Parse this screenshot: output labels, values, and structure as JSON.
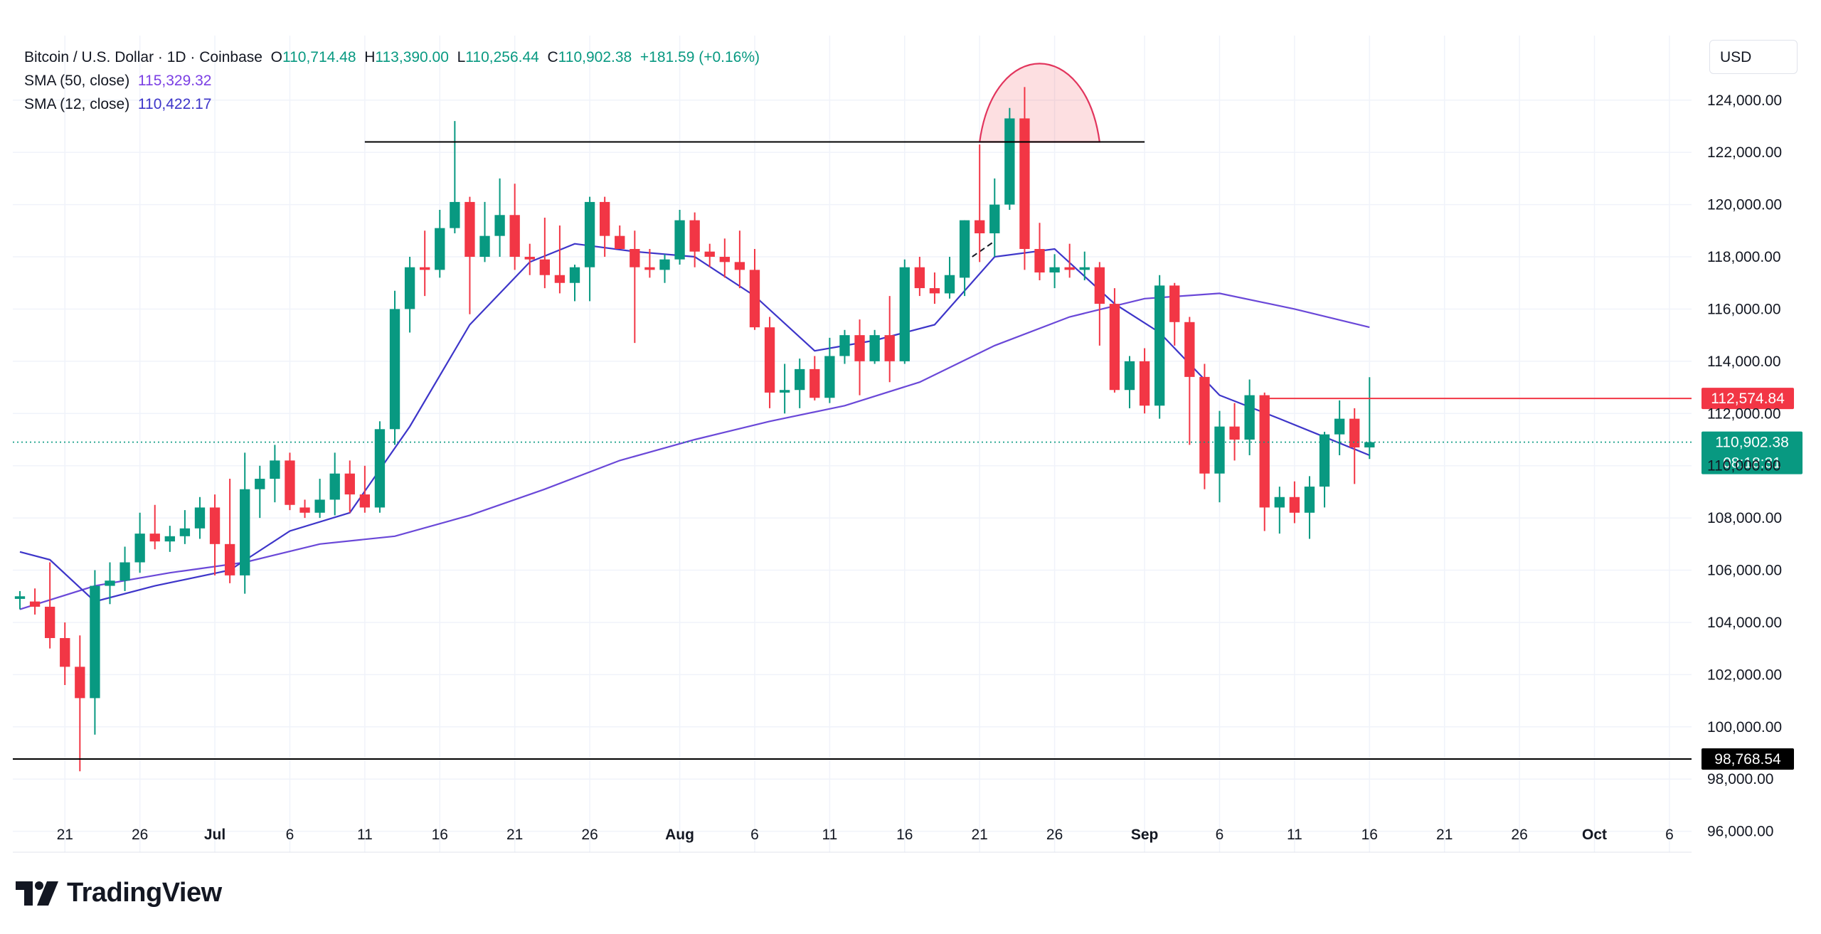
{
  "header": {
    "symbol": "Bitcoin / U.S. Dollar · 1D · Coinbase",
    "o_label": "O",
    "o_value": "110,714.48",
    "h_label": "H",
    "h_value": "113,390.00",
    "l_label": "L",
    "l_value": "110,256.44",
    "c_label": "C",
    "c_value": "110,902.38",
    "change": "+181.59 (+0.16%)",
    "sma50_label": "SMA (50, close)",
    "sma50_value": "115,329.32",
    "sma12_label": "SMA (12, close)",
    "sma12_value": "110,422.17"
  },
  "currency": "USD",
  "brand": "TradingView",
  "colors": {
    "up": "#089981",
    "down": "#f23645",
    "sma50": "#6a48d8",
    "sma12": "#3d35c9",
    "grid": "#f0f3fa",
    "axis_text": "#131722",
    "resistance": "#f23645",
    "support": "#000000"
  },
  "chart_data": {
    "type": "candlestick",
    "x_tick_labels": [
      "21",
      "26",
      "Jul",
      "6",
      "11",
      "16",
      "21",
      "26",
      "Aug",
      "6",
      "11",
      "16",
      "21",
      "26",
      "Sep",
      "6",
      "11",
      "16",
      "21",
      "26",
      "Oct",
      "6"
    ],
    "y_tick_labels": [
      "96,000.00",
      "98,000.00",
      "100,000.00",
      "102,000.00",
      "104,000.00",
      "106,000.00",
      "108,000.00",
      "110,000.00",
      "112,000.00",
      "114,000.00",
      "116,000.00",
      "118,000.00",
      "120,000.00",
      "122,000.00",
      "124,000.00"
    ],
    "ylim": [
      95200,
      126200
    ],
    "x_range": [
      "2025-06-18",
      "2025-10-07"
    ],
    "candles": [
      {
        "d": "2025-06-18",
        "o": 104900,
        "h": 105200,
        "l": 104500,
        "c": 105000
      },
      {
        "d": "2025-06-19",
        "o": 104800,
        "h": 105300,
        "l": 104300,
        "c": 104600
      },
      {
        "d": "2025-06-20",
        "o": 104600,
        "h": 106300,
        "l": 103000,
        "c": 103400
      },
      {
        "d": "2025-06-21",
        "o": 103400,
        "h": 104000,
        "l": 101600,
        "c": 102300
      },
      {
        "d": "2025-06-22",
        "o": 102300,
        "h": 103500,
        "l": 98300,
        "c": 101100
      },
      {
        "d": "2025-06-23",
        "o": 101100,
        "h": 106000,
        "l": 99700,
        "c": 105400
      },
      {
        "d": "2025-06-24",
        "o": 105400,
        "h": 106300,
        "l": 104700,
        "c": 105600
      },
      {
        "d": "2025-06-25",
        "o": 105600,
        "h": 106900,
        "l": 105200,
        "c": 106300
      },
      {
        "d": "2025-06-26",
        "o": 106300,
        "h": 108200,
        "l": 105900,
        "c": 107400
      },
      {
        "d": "2025-06-27",
        "o": 107400,
        "h": 108500,
        "l": 106800,
        "c": 107100
      },
      {
        "d": "2025-06-28",
        "o": 107100,
        "h": 107700,
        "l": 106700,
        "c": 107300
      },
      {
        "d": "2025-06-29",
        "o": 107300,
        "h": 108300,
        "l": 107000,
        "c": 107600
      },
      {
        "d": "2025-06-30",
        "o": 107600,
        "h": 108800,
        "l": 107200,
        "c": 108400
      },
      {
        "d": "2025-07-01",
        "o": 108400,
        "h": 108900,
        "l": 105800,
        "c": 107000
      },
      {
        "d": "2025-07-02",
        "o": 107000,
        "h": 109500,
        "l": 105500,
        "c": 105800
      },
      {
        "d": "2025-07-03",
        "o": 105800,
        "h": 110500,
        "l": 105100,
        "c": 109100
      },
      {
        "d": "2025-07-04",
        "o": 109100,
        "h": 110000,
        "l": 108000,
        "c": 109500
      },
      {
        "d": "2025-07-05",
        "o": 109500,
        "h": 110800,
        "l": 108600,
        "c": 110200
      },
      {
        "d": "2025-07-06",
        "o": 110200,
        "h": 110500,
        "l": 108300,
        "c": 108500
      },
      {
        "d": "2025-07-07",
        "o": 108400,
        "h": 108700,
        "l": 108000,
        "c": 108200
      },
      {
        "d": "2025-07-08",
        "o": 108200,
        "h": 109500,
        "l": 108000,
        "c": 108700
      },
      {
        "d": "2025-07-09",
        "o": 108700,
        "h": 110500,
        "l": 108100,
        "c": 109700
      },
      {
        "d": "2025-07-10",
        "o": 109700,
        "h": 110200,
        "l": 108200,
        "c": 108900
      },
      {
        "d": "2025-07-11",
        "o": 108900,
        "h": 110000,
        "l": 108200,
        "c": 108400
      },
      {
        "d": "2025-07-12",
        "o": 108400,
        "h": 111700,
        "l": 108200,
        "c": 111400
      },
      {
        "d": "2025-07-13",
        "o": 111400,
        "h": 116700,
        "l": 110800,
        "c": 116000
      },
      {
        "d": "2025-07-14",
        "o": 116000,
        "h": 118000,
        "l": 115100,
        "c": 117600
      },
      {
        "d": "2025-07-15",
        "o": 117600,
        "h": 119000,
        "l": 116500,
        "c": 117500
      },
      {
        "d": "2025-07-16",
        "o": 117500,
        "h": 119800,
        "l": 117200,
        "c": 119100
      },
      {
        "d": "2025-07-17",
        "o": 119100,
        "h": 123200,
        "l": 118900,
        "c": 120100
      },
      {
        "d": "2025-07-18",
        "o": 120100,
        "h": 120300,
        "l": 115800,
        "c": 118000
      },
      {
        "d": "2025-07-19",
        "o": 118000,
        "h": 120100,
        "l": 117800,
        "c": 118800
      },
      {
        "d": "2025-07-20",
        "o": 118800,
        "h": 121000,
        "l": 118000,
        "c": 119600
      },
      {
        "d": "2025-07-21",
        "o": 119600,
        "h": 120800,
        "l": 117500,
        "c": 118000
      },
      {
        "d": "2025-07-22",
        "o": 118000,
        "h": 118500,
        "l": 117300,
        "c": 117900
      },
      {
        "d": "2025-07-23",
        "o": 117900,
        "h": 119500,
        "l": 116800,
        "c": 117300
      },
      {
        "d": "2025-07-24",
        "o": 117300,
        "h": 119200,
        "l": 116600,
        "c": 117000
      },
      {
        "d": "2025-07-25",
        "o": 117000,
        "h": 117700,
        "l": 116300,
        "c": 117600
      },
      {
        "d": "2025-07-26",
        "o": 117600,
        "h": 120300,
        "l": 116300,
        "c": 120100
      },
      {
        "d": "2025-07-27",
        "o": 120100,
        "h": 120300,
        "l": 118000,
        "c": 118800
      },
      {
        "d": "2025-07-28",
        "o": 118800,
        "h": 119200,
        "l": 118400,
        "c": 118300
      },
      {
        "d": "2025-07-29",
        "o": 118300,
        "h": 119000,
        "l": 114700,
        "c": 117600
      },
      {
        "d": "2025-07-30",
        "o": 117600,
        "h": 118300,
        "l": 117200,
        "c": 117500
      },
      {
        "d": "2025-07-31",
        "o": 117500,
        "h": 118100,
        "l": 117000,
        "c": 117900
      },
      {
        "d": "2025-08-01",
        "o": 117900,
        "h": 119800,
        "l": 117700,
        "c": 119400
      },
      {
        "d": "2025-08-02",
        "o": 119400,
        "h": 119700,
        "l": 117600,
        "c": 118200
      },
      {
        "d": "2025-08-03",
        "o": 118200,
        "h": 118500,
        "l": 117600,
        "c": 118000
      },
      {
        "d": "2025-08-04",
        "o": 118000,
        "h": 118700,
        "l": 117200,
        "c": 117800
      },
      {
        "d": "2025-08-05",
        "o": 117800,
        "h": 119000,
        "l": 116800,
        "c": 117500
      },
      {
        "d": "2025-08-06",
        "o": 117500,
        "h": 118300,
        "l": 115200,
        "c": 115300
      },
      {
        "d": "2025-08-07",
        "o": 115300,
        "h": 115700,
        "l": 112200,
        "c": 112800
      },
      {
        "d": "2025-08-08",
        "o": 112800,
        "h": 113900,
        "l": 112000,
        "c": 112900
      },
      {
        "d": "2025-08-09",
        "o": 112900,
        "h": 114100,
        "l": 112200,
        "c": 113700
      },
      {
        "d": "2025-08-10",
        "o": 113700,
        "h": 114200,
        "l": 112500,
        "c": 112600
      },
      {
        "d": "2025-08-11",
        "o": 112600,
        "h": 114900,
        "l": 112400,
        "c": 114200
      },
      {
        "d": "2025-08-12",
        "o": 114200,
        "h": 115200,
        "l": 113900,
        "c": 115000
      },
      {
        "d": "2025-08-13",
        "o": 115000,
        "h": 115600,
        "l": 112700,
        "c": 114000
      },
      {
        "d": "2025-08-14",
        "o": 114000,
        "h": 115200,
        "l": 113900,
        "c": 115000
      },
      {
        "d": "2025-08-15",
        "o": 115000,
        "h": 116500,
        "l": 113200,
        "c": 114000
      },
      {
        "d": "2025-08-16",
        "o": 114000,
        "h": 117900,
        "l": 113900,
        "c": 117600
      },
      {
        "d": "2025-08-17",
        "o": 117600,
        "h": 118000,
        "l": 116500,
        "c": 116800
      },
      {
        "d": "2025-08-18",
        "o": 116800,
        "h": 117400,
        "l": 116200,
        "c": 116600
      },
      {
        "d": "2025-08-19",
        "o": 116600,
        "h": 118000,
        "l": 116400,
        "c": 117300
      },
      {
        "d": "2025-08-20",
        "o": 117200,
        "h": 119400,
        "l": 116500,
        "c": 119400
      },
      {
        "d": "2025-08-21",
        "o": 119400,
        "h": 122300,
        "l": 117800,
        "c": 118900
      },
      {
        "d": "2025-08-22",
        "o": 118900,
        "h": 121000,
        "l": 118000,
        "c": 120000
      },
      {
        "d": "2025-08-23",
        "o": 120000,
        "h": 123700,
        "l": 119800,
        "c": 123300
      },
      {
        "d": "2025-08-24",
        "o": 123300,
        "h": 124500,
        "l": 117500,
        "c": 118300
      },
      {
        "d": "2025-08-25",
        "o": 118300,
        "h": 119300,
        "l": 117100,
        "c": 117400
      },
      {
        "d": "2025-08-26",
        "o": 117400,
        "h": 118100,
        "l": 116800,
        "c": 117600
      },
      {
        "d": "2025-08-27",
        "o": 117600,
        "h": 118500,
        "l": 117200,
        "c": 117500
      },
      {
        "d": "2025-08-28",
        "o": 117500,
        "h": 118200,
        "l": 117100,
        "c": 117600
      },
      {
        "d": "2025-08-29",
        "o": 117600,
        "h": 117800,
        "l": 114600,
        "c": 116200
      },
      {
        "d": "2025-08-30",
        "o": 116200,
        "h": 116800,
        "l": 112800,
        "c": 112900
      },
      {
        "d": "2025-08-31",
        "o": 112900,
        "h": 114200,
        "l": 112200,
        "c": 114000
      },
      {
        "d": "2025-09-01",
        "o": 114000,
        "h": 114500,
        "l": 112000,
        "c": 112300
      },
      {
        "d": "2025-09-02",
        "o": 112300,
        "h": 117300,
        "l": 111800,
        "c": 116900
      },
      {
        "d": "2025-09-03",
        "o": 116900,
        "h": 117000,
        "l": 114600,
        "c": 115500
      },
      {
        "d": "2025-09-04",
        "o": 115500,
        "h": 115700,
        "l": 110800,
        "c": 113400
      },
      {
        "d": "2025-09-05",
        "o": 113400,
        "h": 113900,
        "l": 109100,
        "c": 109700
      },
      {
        "d": "2025-09-06",
        "o": 109700,
        "h": 112100,
        "l": 108600,
        "c": 111500
      },
      {
        "d": "2025-09-07",
        "o": 111500,
        "h": 112400,
        "l": 110200,
        "c": 111000
      },
      {
        "d": "2025-09-08",
        "o": 111000,
        "h": 113300,
        "l": 110400,
        "c": 112700
      },
      {
        "d": "2025-09-09",
        "o": 112700,
        "h": 112800,
        "l": 107500,
        "c": 108400
      },
      {
        "d": "2025-09-10",
        "o": 108400,
        "h": 109200,
        "l": 107400,
        "c": 108800
      },
      {
        "d": "2025-09-11",
        "o": 108800,
        "h": 109400,
        "l": 107800,
        "c": 108200
      },
      {
        "d": "2025-09-12",
        "o": 108200,
        "h": 109600,
        "l": 107200,
        "c": 109200
      },
      {
        "d": "2025-09-13",
        "o": 109200,
        "h": 111300,
        "l": 108400,
        "c": 111200
      },
      {
        "d": "2025-09-14",
        "o": 111200,
        "h": 112500,
        "l": 110400,
        "c": 111800
      },
      {
        "d": "2025-09-15",
        "o": 111800,
        "h": 112200,
        "l": 109300,
        "c": 110700
      },
      {
        "d": "2025-09-16",
        "o": 110700,
        "h": 113390,
        "l": 110256,
        "c": 110902
      }
    ],
    "series": [
      {
        "name": "SMA (50, close)",
        "x": [
          "2025-06-18",
          "2025-06-23",
          "2025-06-28",
          "2025-07-03",
          "2025-07-08",
          "2025-07-13",
          "2025-07-18",
          "2025-07-23",
          "2025-07-28",
          "2025-08-02",
          "2025-08-07",
          "2025-08-12",
          "2025-08-17",
          "2025-08-22",
          "2025-08-27",
          "2025-09-01",
          "2025-09-06",
          "2025-09-11",
          "2025-09-16"
        ],
        "values": [
          104500,
          105400,
          105900,
          106300,
          107000,
          107300,
          108100,
          109100,
          110200,
          111000,
          111700,
          112300,
          113200,
          114600,
          115700,
          116400,
          116600,
          116000,
          115300
        ]
      },
      {
        "name": "SMA (12, close)",
        "x": [
          "2025-06-18",
          "2025-06-20",
          "2025-06-23",
          "2025-06-27",
          "2025-07-02",
          "2025-07-06",
          "2025-07-10",
          "2025-07-14",
          "2025-07-18",
          "2025-07-22",
          "2025-07-25",
          "2025-07-29",
          "2025-08-02",
          "2025-08-06",
          "2025-08-10",
          "2025-08-14",
          "2025-08-18",
          "2025-08-22",
          "2025-08-26",
          "2025-08-30",
          "2025-09-02",
          "2025-09-06",
          "2025-09-10",
          "2025-09-13",
          "2025-09-16"
        ],
        "values": [
          106700,
          106400,
          104800,
          105400,
          106000,
          107500,
          108200,
          111500,
          115400,
          117800,
          118500,
          118200,
          118000,
          116500,
          114400,
          114800,
          115400,
          118000,
          118300,
          116200,
          115100,
          112700,
          111800,
          111100,
          110400
        ]
      }
    ],
    "horizontal_lines": [
      {
        "label": "112,574.84",
        "value": 112574.84,
        "x_start": "2025-09-09"
      },
      {
        "label": "98,768.54",
        "value": 98768.54,
        "x_start": "2025-06-18"
      },
      {
        "label": "",
        "value": 122400,
        "x_start": "2025-07-11",
        "x_end": "2025-09-01"
      }
    ],
    "current_price": {
      "label": "110,902.38",
      "countdown": "08:18:31",
      "value": 110902.38
    },
    "annotations": [
      {
        "type": "arc",
        "x_start": "2025-08-21",
        "x_end": "2025-08-29",
        "base": 122400,
        "peak": 125600
      },
      {
        "type": "dashed-segment",
        "x_start": "2025-08-20",
        "y_start": 117800,
        "x_end": "2025-08-22",
        "y_end": 118600
      }
    ]
  }
}
